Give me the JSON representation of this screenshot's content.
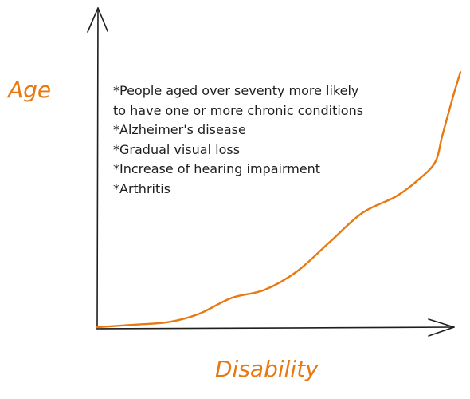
{
  "chart_data": {
    "type": "line",
    "xlabel": "Disability",
    "ylabel": "Age",
    "axis_ticks": "none",
    "grid": false,
    "axis_color": "#1e1e1e",
    "series": [
      {
        "color": "#e8780f",
        "x": [
          0,
          0.11,
          0.2,
          0.28,
          0.37,
          0.46,
          0.55,
          0.64,
          0.73,
          0.82,
          0.88,
          0.93,
          0.95,
          0.98,
          1.0
        ],
        "y": [
          0,
          0.01,
          0.02,
          0.05,
          0.11,
          0.14,
          0.21,
          0.32,
          0.43,
          0.49,
          0.55,
          0.62,
          0.72,
          0.87,
          0.96
        ]
      }
    ],
    "annotations": [
      "*People aged over seventy more likely",
      "to have one or more chronic conditions",
      "*Alzheimer's disease",
      "*Gradual visual loss",
      "*Increase of hearing impairment",
      "*Arthritis"
    ]
  }
}
